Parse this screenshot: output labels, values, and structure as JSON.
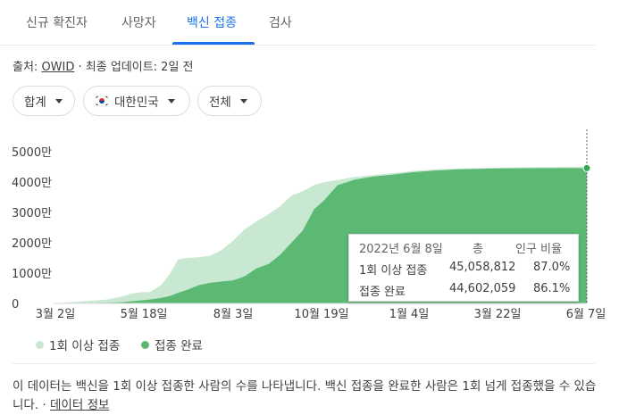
{
  "tabs": [
    {
      "label": "신규 확진자"
    },
    {
      "label": "사망자"
    },
    {
      "label": "백신 접종"
    },
    {
      "label": "검사"
    }
  ],
  "active_tab": 2,
  "source": {
    "prefix": "출처: ",
    "link": "OWID",
    "suffix": " · 최종 업데이트: 2일 전"
  },
  "filters": {
    "measure": "합계",
    "country": "대한민국",
    "country_flag_icon": "korea-flag-icon",
    "population": "전체"
  },
  "chart_data": {
    "type": "area",
    "x_tick_labels": [
      "3월 2일",
      "5월 18일",
      "8월 3일",
      "10월 19일",
      "1월 4일",
      "3월 22일",
      "6월 7일"
    ],
    "y_tick_labels": [
      "0",
      "1000만",
      "2000만",
      "3000만",
      "4000만",
      "5000만"
    ],
    "ylim": [
      0,
      50000000
    ],
    "x": [
      "2021-02-26",
      "2021-03-02",
      "2021-03-20",
      "2021-04-10",
      "2021-04-24",
      "2021-05-01",
      "2021-05-10",
      "2021-05-18",
      "2021-05-28",
      "2021-06-05",
      "2021-06-12",
      "2021-06-20",
      "2021-06-30",
      "2021-07-10",
      "2021-07-20",
      "2021-07-30",
      "2021-08-03",
      "2021-08-10",
      "2021-08-20",
      "2021-08-31",
      "2021-09-10",
      "2021-09-20",
      "2021-09-30",
      "2021-10-10",
      "2021-10-19",
      "2021-10-31",
      "2021-11-15",
      "2021-12-01",
      "2021-12-20",
      "2022-01-04",
      "2022-01-25",
      "2022-02-15",
      "2022-03-22",
      "2022-04-20",
      "2022-05-15",
      "2022-06-07",
      "2022-06-08"
    ],
    "series": [
      {
        "name": "1회 이상 접종",
        "color": "#c9e8d2",
        "values": [
          0,
          200000,
          700000,
          1300000,
          2300000,
          3200000,
          3700000,
          3700000,
          6000000,
          10000000,
          14500000,
          15000000,
          15200000,
          15700000,
          17500000,
          20500000,
          22000000,
          24500000,
          27000000,
          29500000,
          32000000,
          35500000,
          37000000,
          39000000,
          40000000,
          40700000,
          41700000,
          42300000,
          43000000,
          43600000,
          44200000,
          44500000,
          44800000,
          44950000,
          45000000,
          45058812,
          45058812
        ]
      },
      {
        "name": "접종 완료",
        "color": "#5bb974",
        "values": [
          0,
          0,
          100000,
          200000,
          400000,
          700000,
          1000000,
          1300000,
          1800000,
          2500000,
          3500000,
          4500000,
          6000000,
          6800000,
          7200000,
          7600000,
          8000000,
          9000000,
          11500000,
          13000000,
          16000000,
          20000000,
          24000000,
          31000000,
          34000000,
          39000000,
          40800000,
          41800000,
          42500000,
          43200000,
          43800000,
          44200000,
          44500000,
          44550000,
          44580000,
          44602059,
          44602059
        ]
      }
    ],
    "grid": false,
    "legend": "bottom-left",
    "tooltip": {
      "date": "2022년 6월 8일",
      "col_total": "총",
      "col_ratio": "인구 비율",
      "rows": [
        {
          "label": "1회 이상 접종",
          "total": "45,058,812",
          "ratio": "87.0%"
        },
        {
          "label": "접종 완료",
          "total": "44,602,059",
          "ratio": "86.1%"
        }
      ]
    }
  },
  "legend_labels": [
    "1회 이상 접종",
    "접종 완료"
  ],
  "note": {
    "text": "이 데이터는 백신을 1회 이상 접종한 사람의 수를 나타냅니다. 백신 접종을 완료한 사람은 1회 넘게 접종했을 수 있습니다.",
    "separator": " · ",
    "link": "데이터 정보"
  }
}
